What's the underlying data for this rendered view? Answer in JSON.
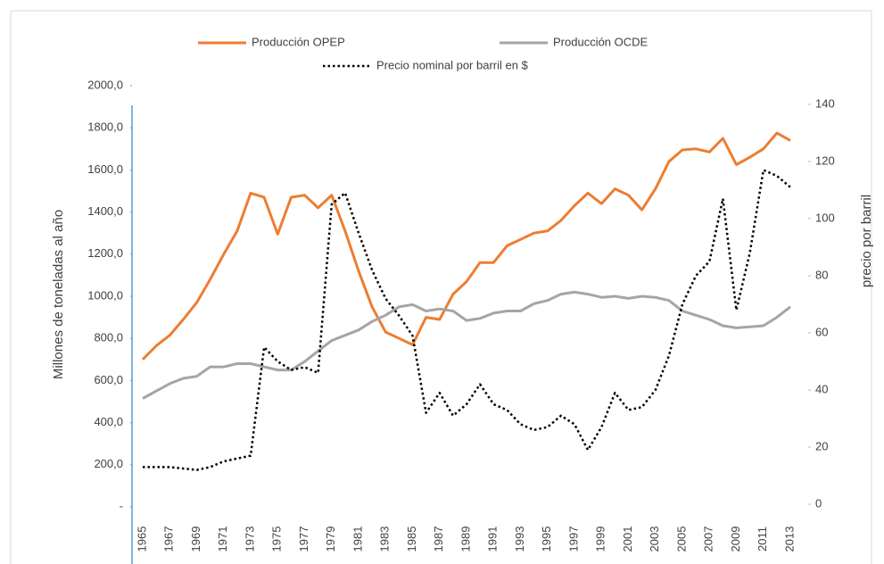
{
  "chart_data": {
    "type": "line",
    "y_label": "Millones de toneladas al año",
    "y2_label": "precio por barril",
    "categories": [
      "1965",
      null,
      "1967",
      null,
      "1969",
      null,
      "1971",
      null,
      "1973",
      null,
      "1975",
      null,
      "1977",
      null,
      "1979",
      null,
      "1981",
      null,
      "1983",
      null,
      "1985",
      null,
      "1987",
      null,
      "1989",
      null,
      "1991",
      null,
      "1993",
      null,
      "1995",
      null,
      "1997",
      null,
      "1999",
      null,
      "2001",
      null,
      "2003",
      null,
      "2005",
      null,
      "2007",
      null,
      "2009",
      null,
      "2011",
      null,
      "2013"
    ],
    "series": [
      {
        "name": "Producción OPEP",
        "color": "#ed7d31",
        "style": "solid",
        "values": [
          700,
          765,
          815,
          890,
          970,
          1080,
          1200,
          1310,
          1490,
          1470,
          1295,
          1470,
          1480,
          1420,
          1480,
          1310,
          1120,
          950,
          830,
          800,
          770,
          900,
          890,
          1010,
          1070,
          1160,
          1160,
          1240,
          1270,
          1300,
          1310,
          1360,
          1430,
          1490,
          1440,
          1510,
          1480,
          1410,
          1510,
          1640,
          1695,
          1700,
          1685,
          1750,
          1625,
          1660,
          1700,
          1775,
          1740
        ]
      },
      {
        "name": "Producción OCDE",
        "color": "#a5a5a5",
        "style": "solid",
        "values": [
          515,
          550,
          585,
          610,
          620,
          665,
          665,
          680,
          680,
          665,
          650,
          650,
          690,
          740,
          790,
          815,
          840,
          880,
          910,
          950,
          960,
          930,
          940,
          930,
          885,
          895,
          920,
          930,
          930,
          965,
          980,
          1010,
          1020,
          1010,
          995,
          1000,
          990,
          1000,
          995,
          980,
          930,
          910,
          890,
          860,
          850,
          855,
          860,
          900,
          950
        ]
      },
      {
        "name": "Precio nominal por barril en $",
        "color": "#000000",
        "style": "dotted",
        "axis": "y2",
        "values": [
          13,
          13,
          13,
          12.5,
          12,
          13,
          15,
          16,
          17,
          55,
          50,
          47,
          48,
          46,
          105,
          109,
          95,
          82,
          72,
          66,
          59,
          32,
          39,
          31,
          35,
          42,
          35,
          33,
          28,
          26,
          27,
          31,
          28,
          19,
          27,
          39,
          33,
          34,
          40,
          52,
          70,
          80,
          85,
          107,
          68,
          88,
          117,
          115,
          111
        ]
      }
    ],
    "ylim": [
      0,
      2000
    ],
    "yticks": [
      {
        "value": 0,
        "label": "-"
      },
      {
        "value": 200,
        "label": "200,0"
      },
      {
        "value": 400,
        "label": "400,0"
      },
      {
        "value": 600,
        "label": "600,0"
      },
      {
        "value": 800,
        "label": "800,0"
      },
      {
        "value": 1000,
        "label": "1000,0"
      },
      {
        "value": 1200,
        "label": "1200,0"
      },
      {
        "value": 1400,
        "label": "1400,0"
      },
      {
        "value": 1600,
        "label": "1600,0"
      },
      {
        "value": 1800,
        "label": "1800,0"
      },
      {
        "value": 2000,
        "label": "2000,0"
      }
    ],
    "y2lim": [
      0,
      140
    ],
    "y2ticks": [
      0,
      20,
      40,
      60,
      80,
      100,
      120,
      140
    ],
    "grid": false
  }
}
